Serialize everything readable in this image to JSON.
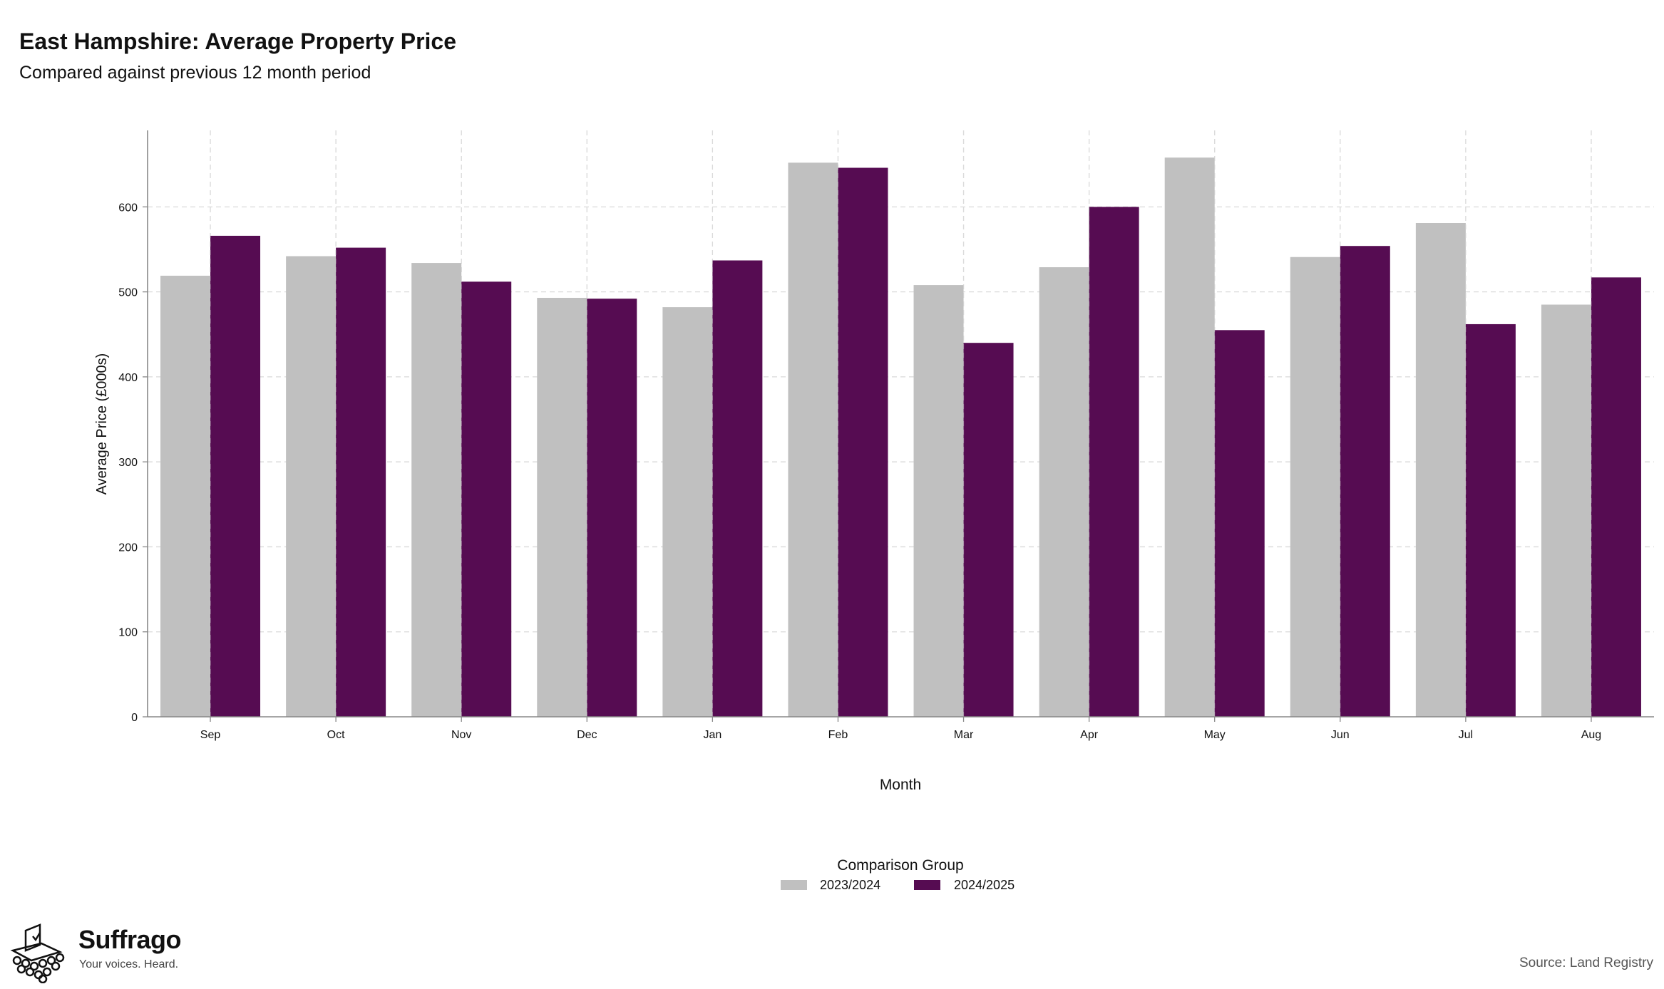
{
  "header": {
    "title": "East Hampshire: Average Property Price",
    "subtitle": "Compared against previous 12 month period"
  },
  "chart_data": {
    "type": "bar",
    "categories": [
      "Sep",
      "Oct",
      "Nov",
      "Dec",
      "Jan",
      "Feb",
      "Mar",
      "Apr",
      "May",
      "Jun",
      "Jul",
      "Aug"
    ],
    "series": [
      {
        "name": "2023/2024",
        "color": "#c0c0c0",
        "values": [
          519,
          542,
          534,
          493,
          482,
          652,
          508,
          529,
          658,
          541,
          581,
          485
        ]
      },
      {
        "name": "2024/2025",
        "color": "#560c52",
        "values": [
          566,
          552,
          512,
          492,
          537,
          646,
          440,
          600,
          455,
          554,
          462,
          517
        ]
      }
    ],
    "xlabel": "Month",
    "ylabel": "Average Price (£000s)",
    "ylim": [
      0,
      690
    ],
    "yticks": [
      0,
      100,
      200,
      300,
      400,
      500,
      600
    ],
    "grid": true,
    "legend_title": "Comparison Group",
    "legend_position": "bottom-center"
  },
  "footer": {
    "brand": "Suffrago",
    "tagline": "Your voices. Heard.",
    "source": "Source: Land Registry"
  }
}
